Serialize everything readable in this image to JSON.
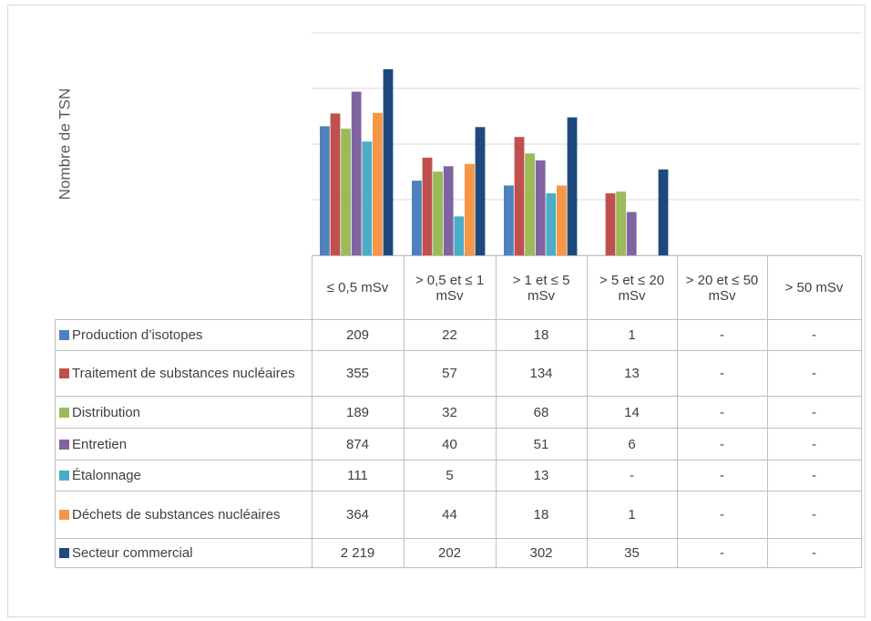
{
  "chart_data": {
    "type": "bar",
    "y_label": "Nombre de TSN",
    "log_scale": true,
    "ylim": [
      1,
      10000
    ],
    "yticks": [
      1,
      10,
      100,
      1000,
      10000
    ],
    "grid": true,
    "categories": [
      "≤ 0,5 mSv",
      "> 0,5 et ≤ 1 mSv",
      "> 1 et ≤ 5 mSv",
      "> 5 et ≤ 20 mSv",
      "> 20 et ≤ 50 mSv",
      "> 50 mSv"
    ],
    "series": [
      {
        "name": "Production d’isotopes",
        "color": "#4f81bd",
        "values": [
          209,
          22,
          18,
          1,
          null,
          null
        ],
        "value_labels": [
          "209",
          "22",
          "18",
          "1",
          "-",
          "-"
        ]
      },
      {
        "name": "Traitement de substances nucléaires",
        "color": "#c0504d",
        "values": [
          355,
          57,
          134,
          13,
          null,
          null
        ],
        "value_labels": [
          "355",
          "57",
          "134",
          "13",
          "-",
          "-"
        ]
      },
      {
        "name": "Distribution",
        "color": "#9bbb59",
        "values": [
          189,
          32,
          68,
          14,
          null,
          null
        ],
        "value_labels": [
          "189",
          "32",
          "68",
          "14",
          "-",
          "-"
        ]
      },
      {
        "name": "Entretien",
        "color": "#8064a2",
        "values": [
          874,
          40,
          51,
          6,
          null,
          null
        ],
        "value_labels": [
          "874",
          "40",
          "51",
          "6",
          "-",
          "-"
        ]
      },
      {
        "name": "Étalonnage",
        "color": "#4bacc6",
        "values": [
          111,
          5,
          13,
          null,
          null,
          null
        ],
        "value_labels": [
          "111",
          "5",
          "13",
          "-",
          "-",
          "-"
        ]
      },
      {
        "name": "Déchets de substances nucléaires",
        "color": "#f79646",
        "values": [
          364,
          44,
          18,
          1,
          null,
          null
        ],
        "value_labels": [
          "364",
          "44",
          "18",
          "1",
          "-",
          "-"
        ]
      },
      {
        "name": "Secteur commercial",
        "color": "#1f497d",
        "values": [
          2219,
          202,
          302,
          35,
          null,
          null
        ],
        "value_labels": [
          "2 219",
          "202",
          "302",
          "35",
          "-",
          "-"
        ]
      }
    ]
  }
}
